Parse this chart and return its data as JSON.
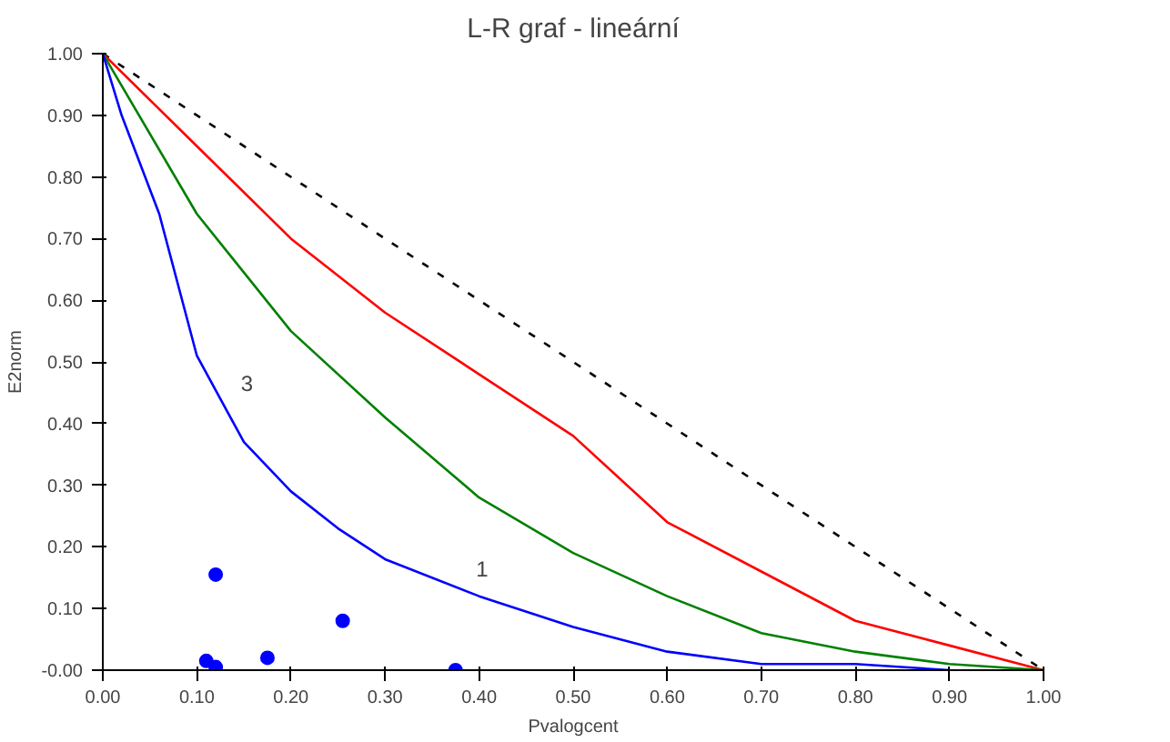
{
  "chart_data": {
    "type": "line",
    "title": "L-R graf - lineární",
    "xlabel": "Pvalogcent",
    "ylabel": "E2norm",
    "xlim": [
      0,
      1.0
    ],
    "ylim": [
      0,
      1.0
    ],
    "xticks": [
      {
        "value": 0,
        "label": "0.00"
      },
      {
        "value": 0.1,
        "label": "0.10"
      },
      {
        "value": 0.2,
        "label": "0.20"
      },
      {
        "value": 0.3,
        "label": "0.30"
      },
      {
        "value": 0.4,
        "label": "0.40"
      },
      {
        "value": 0.5,
        "label": "0.50"
      },
      {
        "value": 0.6,
        "label": "0.60"
      },
      {
        "value": 0.7,
        "label": "0.70"
      },
      {
        "value": 0.8,
        "label": "0.80"
      },
      {
        "value": 0.9,
        "label": "0.90"
      },
      {
        "value": 1.0,
        "label": "1.00"
      }
    ],
    "yticks": [
      {
        "value": 0,
        "label": "-0.00"
      },
      {
        "value": 0.1,
        "label": "0.10"
      },
      {
        "value": 0.2,
        "label": "0.20"
      },
      {
        "value": 0.3,
        "label": "0.30"
      },
      {
        "value": 0.4,
        "label": "0.40"
      },
      {
        "value": 0.5,
        "label": "0.50"
      },
      {
        "value": 0.6,
        "label": "0.60"
      },
      {
        "value": 0.7,
        "label": "0.70"
      },
      {
        "value": 0.8,
        "label": "0.80"
      },
      {
        "value": 0.9,
        "label": "0.90"
      },
      {
        "value": 1.0,
        "label": "1.00"
      }
    ],
    "grid": false,
    "marker": "none",
    "series": [
      {
        "color": "#000000",
        "line_style": "dashed",
        "x": [
          0,
          1.0
        ],
        "values": [
          1.0,
          0
        ]
      },
      {
        "color": "#ff0000",
        "line_style": "solid",
        "x": [
          0,
          0.1,
          0.2,
          0.3,
          0.4,
          0.5,
          0.6,
          0.7,
          0.8,
          0.9,
          1.0
        ],
        "values": [
          1.0,
          0.85,
          0.7,
          0.58,
          0.48,
          0.38,
          0.24,
          0.16,
          0.08,
          0.04,
          0
        ]
      },
      {
        "color": "#008000",
        "line_style": "solid",
        "x": [
          0,
          0.1,
          0.2,
          0.3,
          0.4,
          0.5,
          0.6,
          0.7,
          0.8,
          0.9,
          1.0
        ],
        "values": [
          1.0,
          0.74,
          0.55,
          0.41,
          0.28,
          0.19,
          0.12,
          0.06,
          0.03,
          0.01,
          0
        ]
      },
      {
        "color": "#0000ff",
        "line_style": "solid",
        "x": [
          0,
          0.02,
          0.06,
          0.1,
          0.15,
          0.2,
          0.25,
          0.3,
          0.4,
          0.5,
          0.6,
          0.7,
          0.8,
          0.9
        ],
        "values": [
          1.0,
          0.9,
          0.74,
          0.51,
          0.37,
          0.29,
          0.23,
          0.18,
          0.12,
          0.07,
          0.03,
          0.01,
          0.01,
          0
        ]
      },
      {
        "type": "scatter",
        "color": "#0000ff",
        "marker": "circle",
        "x": [
          0.11,
          0.12,
          0.12,
          0.175,
          0.255,
          0.375
        ],
        "values": [
          0.015,
          0.005,
          0.155,
          0.02,
          0.08,
          0.0
        ]
      }
    ],
    "annotations": [
      {
        "text": "3",
        "x": 0.13,
        "y": 0.43
      },
      {
        "text": "1",
        "x": 0.38,
        "y": 0.13
      }
    ]
  }
}
